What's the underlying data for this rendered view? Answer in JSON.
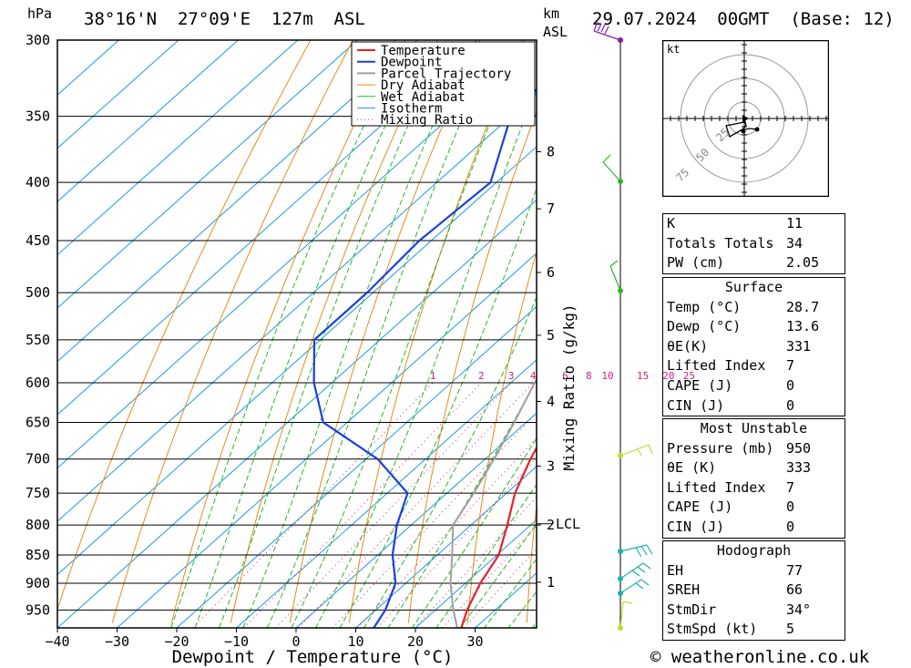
{
  "header": {
    "location": "38°16'N  27°09'E  127m  ASL",
    "timestamp": "29.07.2024  00GMT  (Base: 12)",
    "hpa_label": "hPa",
    "km_label": "km",
    "asl_label": "ASL"
  },
  "chart_data": {
    "type": "line",
    "xlabel": "Dewpoint / Temperature (°C)",
    "ylabel": "hPa",
    "secondary_ylabel": "Mixing Ratio (g/kg)",
    "x_ticks": [
      -40,
      -30,
      -20,
      -10,
      0,
      10,
      20,
      30
    ],
    "pressure_levels": [
      300,
      350,
      400,
      450,
      500,
      550,
      600,
      650,
      700,
      750,
      800,
      850,
      900,
      950
    ],
    "km_ticks": [
      {
        "km": "8",
        "p": 376
      },
      {
        "km": "7",
        "p": 422
      },
      {
        "km": "6",
        "p": 480
      },
      {
        "km": "5",
        "p": 545
      },
      {
        "km": "4",
        "p": 623
      },
      {
        "km": "3",
        "p": 710
      },
      {
        "km": "2",
        "p": 800
      },
      {
        "km": "1",
        "p": 898
      }
    ],
    "lcl": {
      "label": "LCL",
      "p": 798
    },
    "mixing_ratio_labels": [
      "1",
      "2",
      "3",
      "4",
      "6",
      "8",
      "10",
      "15",
      "20",
      "25"
    ],
    "legend": [
      "Temperature",
      "Dewpoint",
      "Parcel Trajectory",
      "Dry Adiabat",
      "Wet Adiabat",
      "Isotherm",
      "Mixing Ratio"
    ],
    "colors": {
      "temperature": "#e8202a",
      "dewpoint": "#1a3fe0",
      "parcel": "#a0a0a0",
      "dry_adiabat": "#e88a1a",
      "wet_adiabat": "#2ab52a",
      "isotherm": "#1e9be0",
      "mixing_ratio": "#d0208a"
    },
    "series": [
      {
        "name": "Temperature",
        "points": [
          [
            1000,
            28.7
          ],
          [
            950,
            25.3
          ],
          [
            900,
            22.5
          ],
          [
            850,
            20.3
          ],
          [
            800,
            16.1
          ],
          [
            750,
            11.4
          ],
          [
            700,
            7.6
          ],
          [
            650,
            4.1
          ],
          [
            600,
            -0.5
          ],
          [
            550,
            -5.3
          ],
          [
            500,
            -10.1
          ],
          [
            450,
            -16.3
          ],
          [
            400,
            -24.5
          ],
          [
            375,
            -29.5
          ],
          [
            360,
            -33.0
          ]
        ]
      },
      {
        "name": "Dewpoint",
        "points": [
          [
            1000,
            13.6
          ],
          [
            950,
            11.6
          ],
          [
            900,
            8.3
          ],
          [
            850,
            2.5
          ],
          [
            800,
            -2.4
          ],
          [
            750,
            -6.6
          ],
          [
            700,
            -18.0
          ],
          [
            650,
            -34.0
          ],
          [
            600,
            -43.0
          ],
          [
            550,
            -51.0
          ],
          [
            500,
            -51.0
          ],
          [
            450,
            -52.0
          ],
          [
            400,
            -51.0
          ],
          [
            350,
            -60.0
          ],
          [
            300,
            -62.0
          ]
        ]
      },
      {
        "name": "Parcel Trajectory",
        "points": [
          [
            1000,
            28.7
          ],
          [
            950,
            23.0
          ],
          [
            900,
            17.5
          ],
          [
            850,
            12.5
          ],
          [
            800,
            7.0
          ],
          [
            750,
            4.5
          ],
          [
            700,
            1.5
          ],
          [
            650,
            -2.0
          ],
          [
            600,
            -6.0
          ],
          [
            550,
            -10.5
          ],
          [
            500,
            -15.5
          ],
          [
            450,
            -21.0
          ],
          [
            400,
            -27.5
          ],
          [
            350,
            -35.5
          ],
          [
            310,
            -43.0
          ]
        ]
      }
    ],
    "hodograph": {
      "unit": "kt",
      "ring_labels": [
        "25",
        "50",
        "75"
      ]
    }
  },
  "indices": {
    "general": [
      [
        "K",
        "11"
      ],
      [
        "Totals Totals",
        "34"
      ],
      [
        "PW (cm)",
        "2.05"
      ]
    ],
    "surface_title": "Surface",
    "surface": [
      [
        "Temp (°C)",
        "28.7"
      ],
      [
        "Dewp (°C)",
        "13.6"
      ],
      [
        "θE(K)",
        "331"
      ],
      [
        "Lifted Index",
        "7"
      ],
      [
        "CAPE (J)",
        "0"
      ],
      [
        "CIN (J)",
        "0"
      ]
    ],
    "mu_title": "Most Unstable",
    "mu": [
      [
        "Pressure (mb)",
        "950"
      ],
      [
        "θE (K)",
        "333"
      ],
      [
        "Lifted Index",
        "7"
      ],
      [
        "CAPE (J)",
        "0"
      ],
      [
        "CIN (J)",
        "0"
      ]
    ],
    "hodo_title": "Hodograph",
    "hodo": [
      [
        "EH",
        "77"
      ],
      [
        "SREH",
        "66"
      ],
      [
        "StmDir",
        "34°"
      ],
      [
        "StmSpd (kt)",
        "5"
      ]
    ]
  },
  "footer": {
    "copyright": "© weatheronline.co.uk"
  }
}
